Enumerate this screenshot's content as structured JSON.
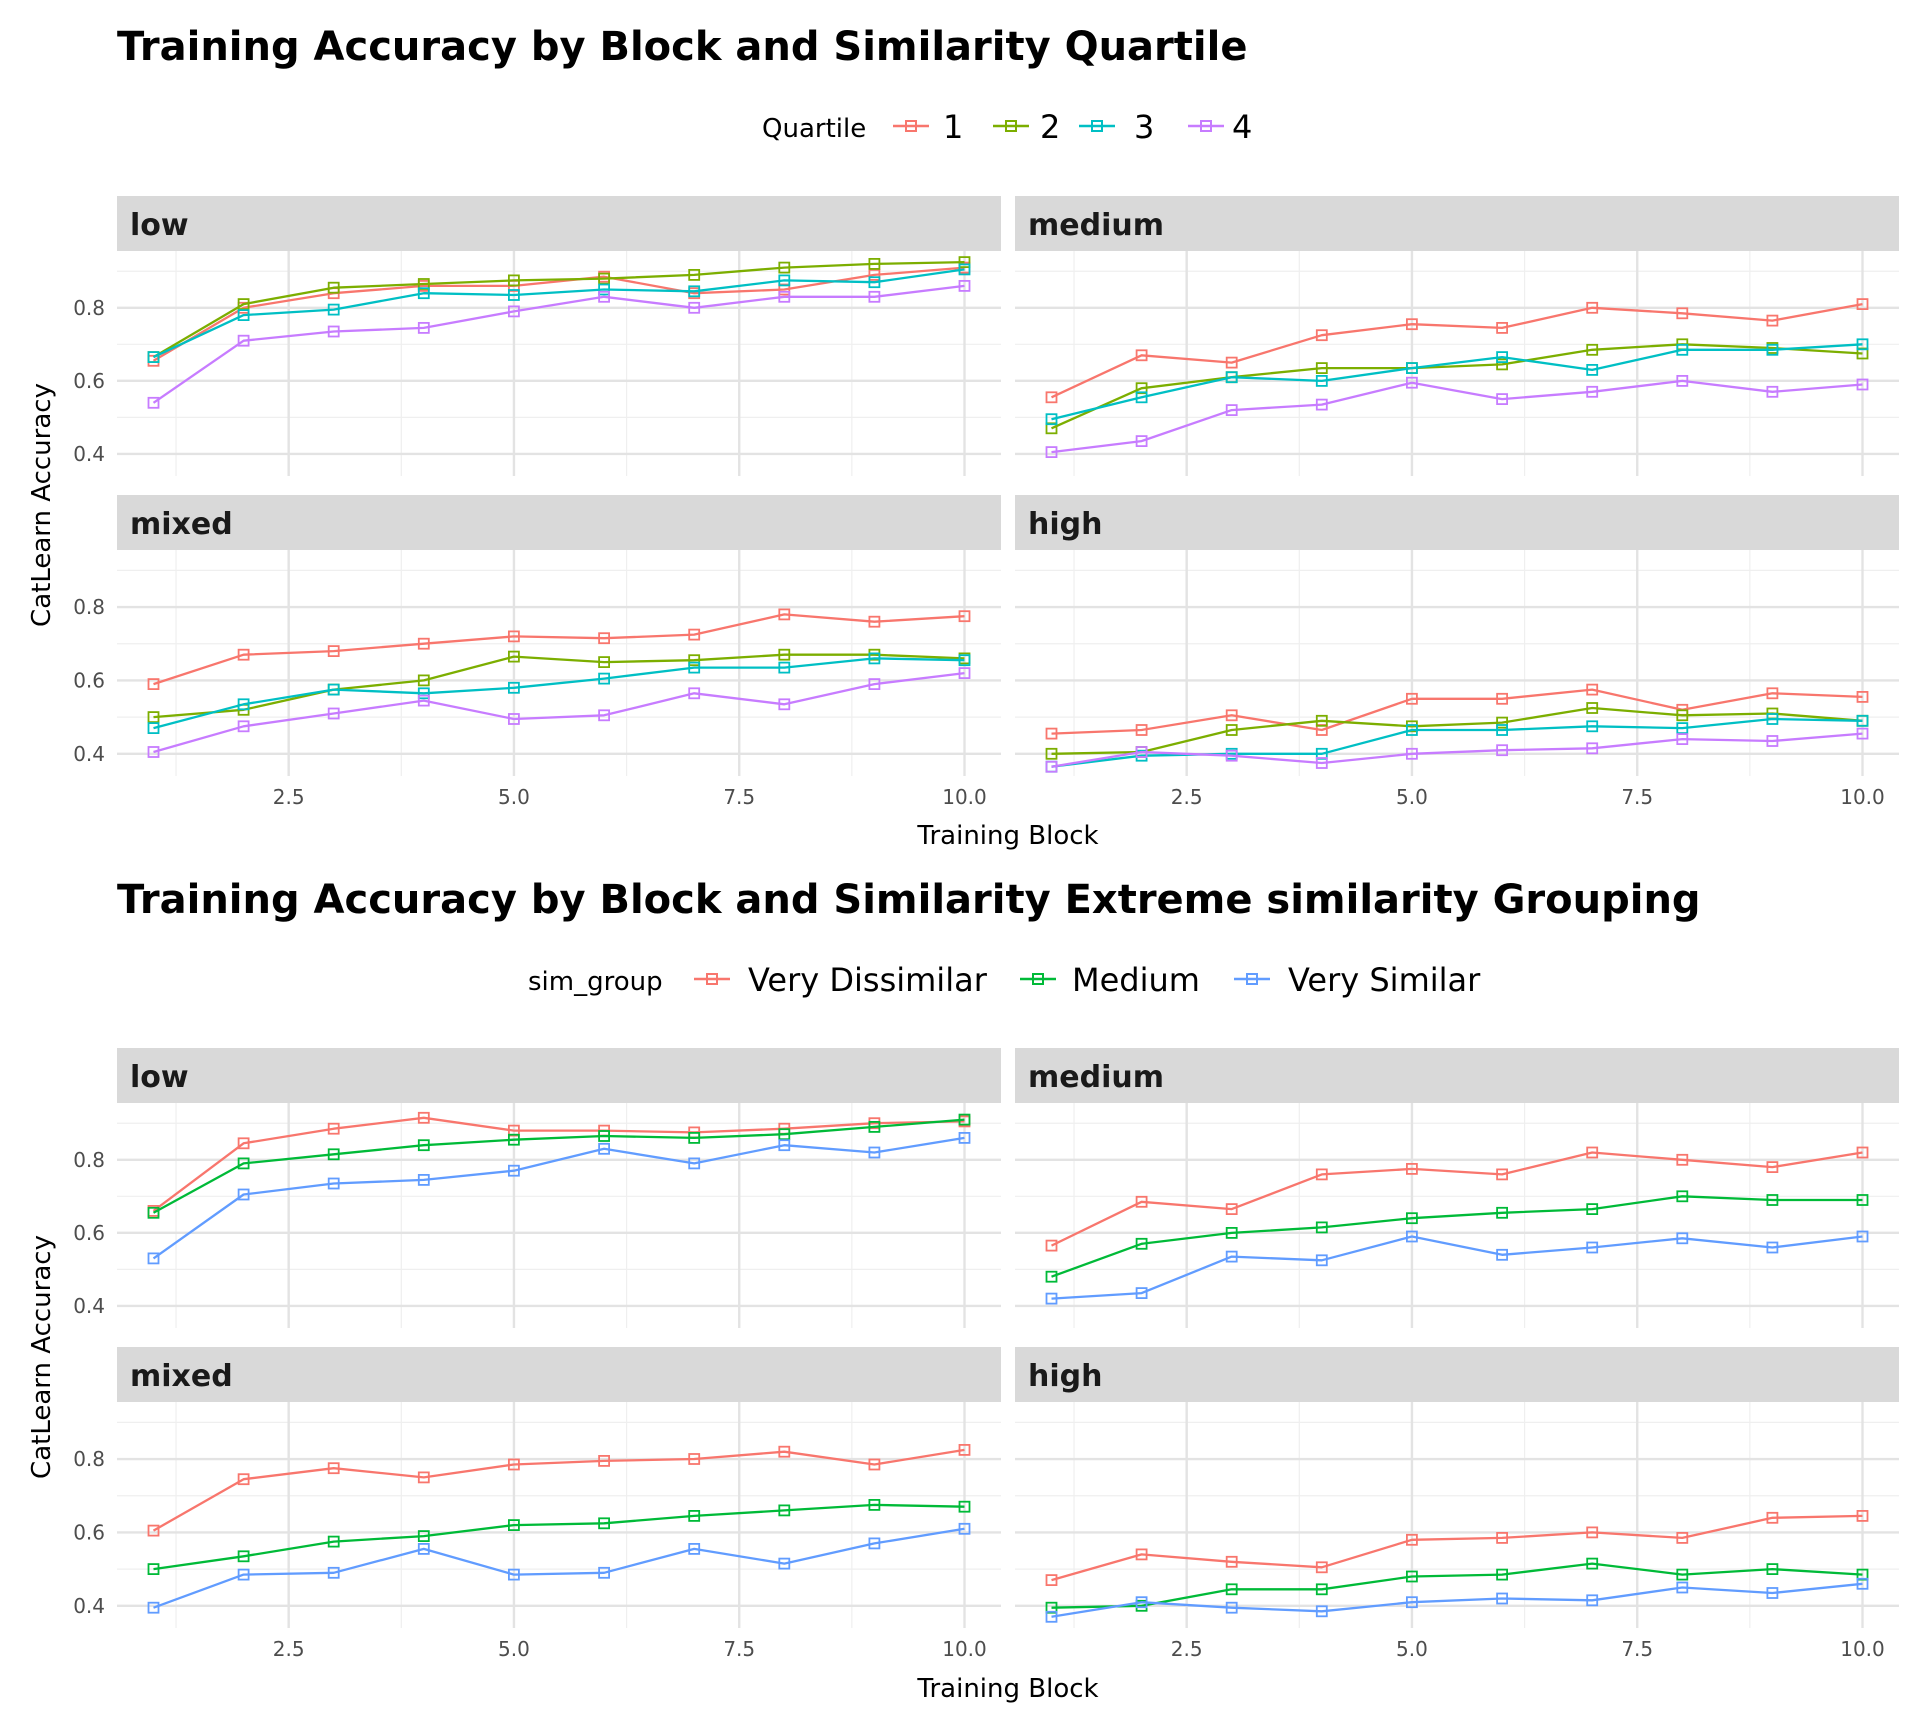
{
  "chart_data": [
    {
      "type": "line",
      "title": "Training Accuracy by Block and Similarity Quartile",
      "xlabel": "Training Block",
      "ylabel": "CatLearn Accuracy",
      "legend_title": "Quartile",
      "legend_position": "top",
      "facet_labels": [
        "low",
        "medium",
        "mixed",
        "high"
      ],
      "x_ticks": [
        "2.5",
        "5.0",
        "7.5",
        "10.0"
      ],
      "y_ticks": [
        "0.4",
        "0.6",
        "0.8"
      ],
      "xlim": [
        1,
        10
      ],
      "ylim": [
        0.365,
        0.93
      ],
      "grid": true,
      "x": [
        1,
        2,
        3,
        4,
        5,
        6,
        7,
        8,
        9,
        10
      ],
      "series_names": [
        "1",
        "2",
        "3",
        "4"
      ],
      "series_colors": [
        "#F8766D",
        "#7CAE00",
        "#00BFC4",
        "#C77CFF"
      ],
      "facets": [
        {
          "label": "low",
          "series": [
            {
              "name": "1",
              "values": [
                0.655,
                0.8,
                0.84,
                0.86,
                0.86,
                0.885,
                0.84,
                0.85,
                0.89,
                0.91
              ]
            },
            {
              "name": "2",
              "values": [
                0.665,
                0.81,
                0.855,
                0.865,
                0.875,
                0.88,
                0.89,
                0.91,
                0.92,
                0.925
              ]
            },
            {
              "name": "3",
              "values": [
                0.665,
                0.78,
                0.795,
                0.84,
                0.835,
                0.85,
                0.845,
                0.875,
                0.87,
                0.905
              ]
            },
            {
              "name": "4",
              "values": [
                0.54,
                0.71,
                0.735,
                0.745,
                0.79,
                0.83,
                0.8,
                0.83,
                0.83,
                0.86
              ]
            }
          ]
        },
        {
          "label": "medium",
          "series": [
            {
              "name": "1",
              "values": [
                0.555,
                0.67,
                0.65,
                0.725,
                0.755,
                0.745,
                0.8,
                0.785,
                0.765,
                0.81
              ]
            },
            {
              "name": "2",
              "values": [
                0.47,
                0.58,
                0.61,
                0.635,
                0.635,
                0.645,
                0.685,
                0.7,
                0.69,
                0.675
              ]
            },
            {
              "name": "3",
              "values": [
                0.495,
                0.555,
                0.61,
                0.6,
                0.635,
                0.665,
                0.63,
                0.685,
                0.685,
                0.7
              ]
            },
            {
              "name": "4",
              "values": [
                0.405,
                0.435,
                0.52,
                0.535,
                0.595,
                0.55,
                0.57,
                0.6,
                0.57,
                0.59
              ]
            }
          ]
        },
        {
          "label": "mixed",
          "series": [
            {
              "name": "1",
              "values": [
                0.59,
                0.67,
                0.68,
                0.7,
                0.72,
                0.715,
                0.725,
                0.78,
                0.76,
                0.775
              ]
            },
            {
              "name": "2",
              "values": [
                0.5,
                0.52,
                0.575,
                0.6,
                0.665,
                0.65,
                0.655,
                0.67,
                0.67,
                0.66
              ]
            },
            {
              "name": "3",
              "values": [
                0.47,
                0.535,
                0.575,
                0.565,
                0.58,
                0.605,
                0.635,
                0.635,
                0.66,
                0.655
              ]
            },
            {
              "name": "4",
              "values": [
                0.405,
                0.475,
                0.51,
                0.545,
                0.495,
                0.505,
                0.565,
                0.535,
                0.59,
                0.62
              ]
            }
          ]
        },
        {
          "label": "high",
          "series": [
            {
              "name": "1",
              "values": [
                0.455,
                0.465,
                0.505,
                0.465,
                0.55,
                0.55,
                0.575,
                0.52,
                0.565,
                0.555
              ]
            },
            {
              "name": "2",
              "values": [
                0.4,
                0.405,
                0.465,
                0.49,
                0.475,
                0.485,
                0.525,
                0.505,
                0.51,
                0.49
              ]
            },
            {
              "name": "3",
              "values": [
                0.365,
                0.395,
                0.4,
                0.4,
                0.465,
                0.465,
                0.475,
                0.47,
                0.495,
                0.49
              ]
            },
            {
              "name": "4",
              "values": [
                0.365,
                0.405,
                0.395,
                0.375,
                0.4,
                0.41,
                0.415,
                0.44,
                0.435,
                0.455
              ]
            }
          ]
        }
      ]
    },
    {
      "type": "line",
      "title": "Training Accuracy by Block and Similarity Extreme similarity Grouping",
      "xlabel": "Training Block",
      "ylabel": "CatLearn Accuracy",
      "legend_title": "sim_group",
      "legend_position": "top",
      "facet_labels": [
        "low",
        "medium",
        "mixed",
        "high"
      ],
      "x_ticks": [
        "2.5",
        "5.0",
        "7.5",
        "10.0"
      ],
      "y_ticks": [
        "0.4",
        "0.6",
        "0.8"
      ],
      "xlim": [
        1,
        10
      ],
      "ylim": [
        0.365,
        0.93
      ],
      "grid": true,
      "x": [
        1,
        2,
        3,
        4,
        5,
        6,
        7,
        8,
        9,
        10
      ],
      "series_names": [
        "Very Dissimilar",
        "Medium",
        "Very Similar"
      ],
      "series_colors": [
        "#F8766D",
        "#00BA38",
        "#619CFF"
      ],
      "facets": [
        {
          "label": "low",
          "series": [
            {
              "name": "Very Dissimilar",
              "values": [
                0.66,
                0.845,
                0.885,
                0.915,
                0.88,
                0.88,
                0.875,
                0.885,
                0.9,
                0.905
              ]
            },
            {
              "name": "Medium",
              "values": [
                0.655,
                0.79,
                0.815,
                0.84,
                0.855,
                0.865,
                0.86,
                0.87,
                0.89,
                0.91
              ]
            },
            {
              "name": "Very Similar",
              "values": [
                0.53,
                0.705,
                0.735,
                0.745,
                0.77,
                0.83,
                0.79,
                0.84,
                0.82,
                0.86
              ]
            }
          ]
        },
        {
          "label": "medium",
          "series": [
            {
              "name": "Very Dissimilar",
              "values": [
                0.565,
                0.685,
                0.665,
                0.76,
                0.775,
                0.76,
                0.82,
                0.8,
                0.78,
                0.82
              ]
            },
            {
              "name": "Medium",
              "values": [
                0.48,
                0.57,
                0.6,
                0.615,
                0.64,
                0.655,
                0.665,
                0.7,
                0.69,
                0.69
              ]
            },
            {
              "name": "Very Similar",
              "values": [
                0.42,
                0.435,
                0.535,
                0.525,
                0.59,
                0.54,
                0.56,
                0.585,
                0.56,
                0.59
              ]
            }
          ]
        },
        {
          "label": "mixed",
          "series": [
            {
              "name": "Very Dissimilar",
              "values": [
                0.605,
                0.745,
                0.775,
                0.75,
                0.785,
                0.795,
                0.8,
                0.82,
                0.785,
                0.825
              ]
            },
            {
              "name": "Medium",
              "values": [
                0.5,
                0.535,
                0.575,
                0.59,
                0.62,
                0.625,
                0.645,
                0.66,
                0.675,
                0.67
              ]
            },
            {
              "name": "Very Similar",
              "values": [
                0.395,
                0.485,
                0.49,
                0.555,
                0.485,
                0.49,
                0.555,
                0.515,
                0.57,
                0.61
              ]
            }
          ]
        },
        {
          "label": "high",
          "series": [
            {
              "name": "Very Dissimilar",
              "values": [
                0.47,
                0.54,
                0.52,
                0.505,
                0.58,
                0.585,
                0.6,
                0.585,
                0.64,
                0.645
              ]
            },
            {
              "name": "Medium",
              "values": [
                0.395,
                0.4,
                0.445,
                0.445,
                0.48,
                0.485,
                0.515,
                0.485,
                0.5,
                0.485
              ]
            },
            {
              "name": "Very Similar",
              "values": [
                0.37,
                0.41,
                0.395,
                0.385,
                0.41,
                0.42,
                0.415,
                0.45,
                0.435,
                0.46
              ]
            }
          ]
        }
      ]
    }
  ]
}
